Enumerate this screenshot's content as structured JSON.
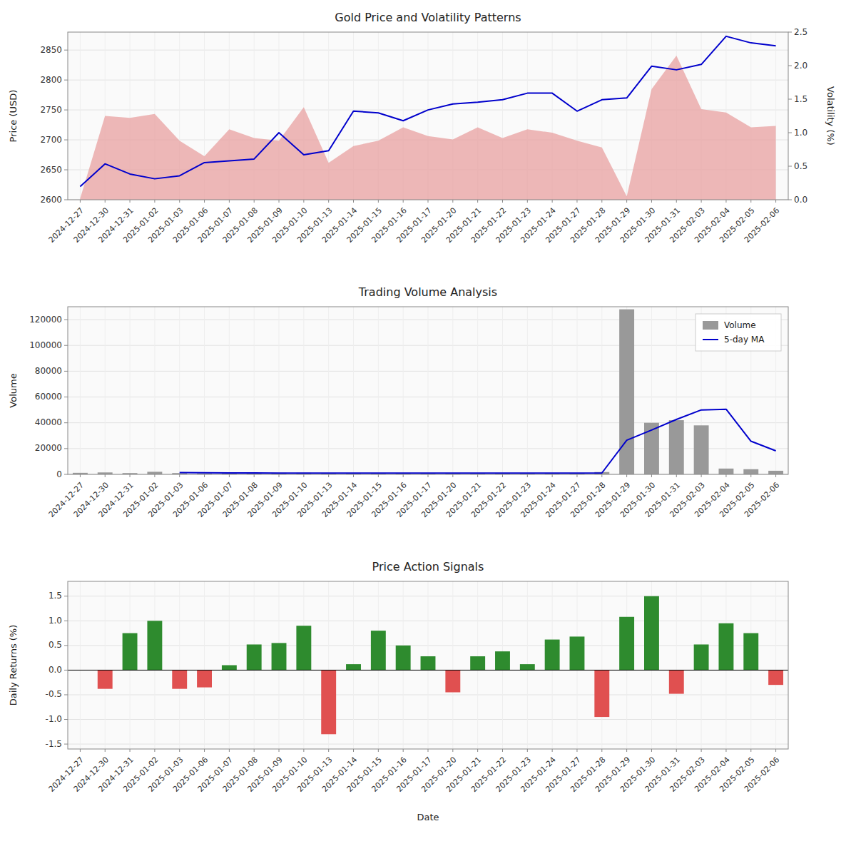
{
  "chart_data": [
    {
      "type": "line",
      "title": "Gold Price and Volatility Patterns",
      "ylabel": "Price (USD)",
      "y2label": "Volatility (%)",
      "categories": [
        "2024-12-27",
        "2024-12-30",
        "2024-12-31",
        "2025-01-02",
        "2025-01-03",
        "2025-01-06",
        "2025-01-07",
        "2025-01-08",
        "2025-01-09",
        "2025-01-10",
        "2025-01-13",
        "2025-01-14",
        "2025-01-15",
        "2025-01-16",
        "2025-01-17",
        "2025-01-20",
        "2025-01-21",
        "2025-01-22",
        "2025-01-23",
        "2025-01-24",
        "2025-01-27",
        "2025-01-28",
        "2025-01-29",
        "2025-01-30",
        "2025-01-31",
        "2025-02-03",
        "2025-02-04",
        "2025-02-05",
        "2025-02-06"
      ],
      "series": [
        {
          "type": "area",
          "color": "#e8a0a0",
          "axis": "y2",
          "values": [
            0.02,
            1.25,
            1.22,
            1.28,
            0.88,
            0.65,
            1.05,
            0.92,
            0.88,
            1.38,
            0.55,
            0.8,
            0.88,
            1.08,
            0.95,
            0.9,
            1.08,
            0.92,
            1.05,
            1.0,
            0.88,
            0.78,
            0.05,
            1.65,
            2.15,
            1.35,
            1.3,
            1.08,
            1.1
          ]
        },
        {
          "type": "line",
          "color": "#0000cc",
          "values": [
            2622,
            2660,
            2643,
            2635,
            2640,
            2662,
            2665,
            2668,
            2712,
            2675,
            2682,
            2748,
            2745,
            2732,
            2750,
            2760,
            2763,
            2767,
            2778,
            2778,
            2748,
            2767,
            2770,
            2823,
            2817,
            2826,
            2873,
            2862,
            2857
          ]
        }
      ],
      "ylim": [
        2600,
        2880
      ],
      "yticks": [
        2600,
        2650,
        2700,
        2750,
        2800,
        2850
      ],
      "y2lim": [
        0.0,
        2.5
      ],
      "y2ticks": [
        {
          "value": 0,
          "label": "0.0"
        },
        0.5,
        {
          "value": 1,
          "label": "1.0"
        },
        1.5,
        {
          "value": 2,
          "label": "2.0"
        },
        2.5
      ],
      "grid": true
    },
    {
      "type": "bar",
      "title": "Trading Volume Analysis",
      "ylabel": "Volume",
      "categories": [
        "2024-12-27",
        "2024-12-30",
        "2024-12-31",
        "2025-01-02",
        "2025-01-03",
        "2025-01-06",
        "2025-01-07",
        "2025-01-08",
        "2025-01-09",
        "2025-01-10",
        "2025-01-13",
        "2025-01-14",
        "2025-01-15",
        "2025-01-16",
        "2025-01-17",
        "2025-01-20",
        "2025-01-21",
        "2025-01-22",
        "2025-01-23",
        "2025-01-24",
        "2025-01-27",
        "2025-01-28",
        "2025-01-29",
        "2025-01-30",
        "2025-01-31",
        "2025-02-03",
        "2025-02-04",
        "2025-02-05",
        "2025-02-06"
      ],
      "series": [
        {
          "name": "Volume",
          "type": "bar",
          "color": "#999999",
          "values": [
            1200,
            1500,
            1000,
            2000,
            1000,
            800,
            1000,
            800,
            1200,
            1200,
            900,
            1000,
            800,
            900,
            1000,
            900,
            1000,
            900,
            800,
            900,
            1100,
            1800,
            128000,
            40000,
            42000,
            38000,
            4500,
            4000,
            2800
          ]
        },
        {
          "name": "5-day MA",
          "type": "line",
          "color": "#0000cc",
          "values": [
            null,
            null,
            null,
            null,
            1340,
            1260,
            1160,
            1120,
            960,
            1000,
            1020,
            1020,
            1020,
            960,
            920,
            920,
            920,
            940,
            920,
            900,
            940,
            1100,
            26520,
            34360,
            42580,
            49960,
            50500,
            25700,
            18260
          ]
        }
      ],
      "ylim": [
        0,
        130000
      ],
      "yticks": [
        0,
        20000,
        40000,
        60000,
        80000,
        100000,
        120000
      ],
      "grid": true,
      "legend": "upper right"
    },
    {
      "type": "bar",
      "title": "Price Action Signals",
      "xlabel": "Date",
      "ylabel": "Daily Returns (%)",
      "categories": [
        "2024-12-27",
        "2024-12-30",
        "2024-12-31",
        "2025-01-02",
        "2025-01-03",
        "2025-01-06",
        "2025-01-07",
        "2025-01-08",
        "2025-01-09",
        "2025-01-10",
        "2025-01-13",
        "2025-01-14",
        "2025-01-15",
        "2025-01-16",
        "2025-01-17",
        "2025-01-20",
        "2025-01-21",
        "2025-01-22",
        "2025-01-23",
        "2025-01-24",
        "2025-01-27",
        "2025-01-28",
        "2025-01-29",
        "2025-01-30",
        "2025-01-31",
        "2025-02-03",
        "2025-02-04",
        "2025-02-05",
        "2025-02-06"
      ],
      "values": [
        0.0,
        -0.38,
        0.75,
        1.0,
        -0.38,
        -0.35,
        0.1,
        0.52,
        0.55,
        0.9,
        -1.3,
        0.12,
        0.8,
        0.5,
        0.28,
        -0.45,
        0.28,
        0.38,
        0.12,
        0.62,
        0.68,
        -0.95,
        1.08,
        1.5,
        -0.48,
        0.52,
        0.95,
        0.75,
        -0.3
      ],
      "colors": [
        "#2e8b2e",
        "#e05050",
        "#2e8b2e",
        "#2e8b2e",
        "#e05050",
        "#e05050",
        "#2e8b2e",
        "#2e8b2e",
        "#2e8b2e",
        "#2e8b2e",
        "#e05050",
        "#2e8b2e",
        "#2e8b2e",
        "#2e8b2e",
        "#2e8b2e",
        "#e05050",
        "#2e8b2e",
        "#2e8b2e",
        "#2e8b2e",
        "#2e8b2e",
        "#2e8b2e",
        "#e05050",
        "#2e8b2e",
        "#2e8b2e",
        "#e05050",
        "#2e8b2e",
        "#2e8b2e",
        "#2e8b2e",
        "#e05050"
      ],
      "ylim": [
        -1.6,
        1.8
      ],
      "yticks": [
        -1.5,
        {
          "value": -1,
          "label": "-1.0"
        },
        -0.5,
        {
          "value": 0,
          "label": "0.0"
        },
        0.5,
        {
          "value": 1,
          "label": "1.0"
        },
        1.5
      ],
      "grid": true
    }
  ]
}
